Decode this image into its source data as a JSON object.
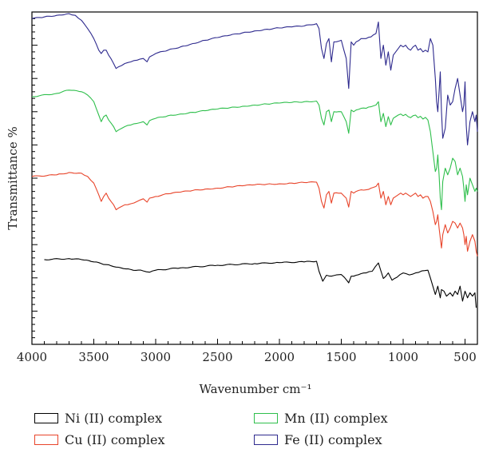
{
  "chart_data": {
    "type": "line",
    "xlabel": "Wavenumber cm⁻¹",
    "ylabel": "Transmittance %",
    "xlim": [
      4000,
      400
    ],
    "x_reversed": true,
    "ylim": [
      0,
      100
    ],
    "y_tick_labels_shown": false,
    "x_ticks": [
      4000,
      3500,
      3000,
      2500,
      2000,
      1500,
      1000,
      500
    ],
    "x_tick_labels": [
      "4000",
      "3500",
      "3000",
      "2500",
      "2000",
      "1500",
      "1000",
      "500"
    ],
    "legend_position": "bottom",
    "series": [
      {
        "name": "Ni (II) complex",
        "color": "#000000",
        "x": [
          3900,
          3700,
          3600,
          3500,
          3400,
          3300,
          3200,
          3100,
          3050,
          3000,
          2800,
          2500,
          2200,
          2000,
          1800,
          1700,
          1680,
          1650,
          1620,
          1580,
          1500,
          1450,
          1440,
          1420,
          1380,
          1300,
          1250,
          1200,
          1160,
          1120,
          1090,
          1050,
          1000,
          950,
          900,
          850,
          800,
          780,
          760,
          740,
          720,
          700,
          690,
          670,
          650,
          620,
          600,
          580,
          560,
          540,
          520,
          500,
          480,
          460,
          440,
          420,
          410
        ],
        "y": [
          25.5,
          25.8,
          25.5,
          24.8,
          24.0,
          23.2,
          22.5,
          22.1,
          21.7,
          22.3,
          23.0,
          23.8,
          24.3,
          24.6,
          24.8,
          25.0,
          22.0,
          19.0,
          20.8,
          20.5,
          21.0,
          19.0,
          18.5,
          20.5,
          20.8,
          21.5,
          22.0,
          24.5,
          19.8,
          21.5,
          19.3,
          20.2,
          21.5,
          20.9,
          21.5,
          22.1,
          22.3,
          20.0,
          17.5,
          15.0,
          17.5,
          14.0,
          16.5,
          16.0,
          14.5,
          15.5,
          14.5,
          16.0,
          15.0,
          17.5,
          13.0,
          16.0,
          14.0,
          15.5,
          14.5,
          15.5,
          11.0
        ]
      },
      {
        "name": "Cu (II) complex",
        "color": "#e8442a",
        "x": [
          4000,
          3800,
          3700,
          3600,
          3550,
          3500,
          3460,
          3440,
          3420,
          3400,
          3380,
          3340,
          3320,
          3300,
          3250,
          3200,
          3150,
          3100,
          3070,
          3050,
          3000,
          2900,
          2800,
          2700,
          2600,
          2500,
          2400,
          2300,
          2200,
          2100,
          2000,
          1900,
          1800,
          1700,
          1680,
          1660,
          1640,
          1620,
          1600,
          1580,
          1560,
          1500,
          1460,
          1440,
          1420,
          1400,
          1380,
          1340,
          1300,
          1260,
          1220,
          1200,
          1180,
          1160,
          1140,
          1120,
          1100,
          1080,
          1060,
          1040,
          1020,
          1000,
          980,
          960,
          940,
          920,
          900,
          880,
          860,
          840,
          820,
          800,
          780,
          760,
          740,
          730,
          720,
          710,
          700,
          690,
          680,
          660,
          640,
          620,
          600,
          580,
          560,
          540,
          520,
          510,
          500,
          490,
          480,
          460,
          440,
          420,
          410,
          400
        ],
        "y": [
          50.5,
          51.0,
          51.7,
          51.5,
          50.5,
          48.5,
          45.0,
          43.0,
          44.5,
          45.5,
          44.0,
          42.0,
          40.5,
          41.0,
          42.0,
          42.3,
          43.0,
          43.8,
          42.8,
          44.0,
          44.5,
          45.3,
          45.8,
          46.3,
          46.7,
          47.0,
          47.4,
          47.7,
          48.0,
          48.2,
          48.3,
          48.5,
          48.7,
          48.8,
          47.0,
          43.0,
          41.0,
          45.0,
          46.0,
          42.5,
          45.5,
          45.5,
          44.0,
          41.3,
          46.0,
          45.5,
          46.0,
          46.5,
          46.5,
          47.0,
          47.5,
          48.5,
          44.0,
          46.0,
          42.0,
          44.5,
          42.0,
          44.0,
          44.5,
          45.0,
          45.5,
          45.0,
          45.5,
          45.0,
          44.5,
          45.0,
          45.5,
          44.5,
          45.0,
          44.0,
          44.5,
          44.5,
          43.0,
          40.0,
          36.0,
          37.0,
          39.0,
          35.0,
          32.0,
          29.0,
          33.0,
          36.0,
          33.5,
          35.0,
          37.0,
          36.5,
          35.0,
          36.5,
          35.0,
          33.0,
          30.0,
          32.5,
          28.0,
          31.0,
          33.0,
          31.0,
          28.0,
          26.5
        ]
      },
      {
        "name": "Mn (II) complex",
        "color": "#2fbf4c",
        "x": [
          4000,
          3800,
          3700,
          3600,
          3550,
          3500,
          3460,
          3440,
          3420,
          3400,
          3380,
          3340,
          3320,
          3300,
          3250,
          3200,
          3150,
          3100,
          3070,
          3050,
          3000,
          2900,
          2800,
          2700,
          2600,
          2500,
          2400,
          2300,
          2200,
          2100,
          2000,
          1900,
          1800,
          1700,
          1680,
          1660,
          1640,
          1620,
          1600,
          1580,
          1560,
          1500,
          1460,
          1440,
          1420,
          1400,
          1380,
          1340,
          1300,
          1260,
          1220,
          1200,
          1180,
          1160,
          1140,
          1120,
          1100,
          1080,
          1060,
          1040,
          1020,
          1000,
          980,
          960,
          940,
          920,
          900,
          880,
          860,
          840,
          820,
          800,
          780,
          760,
          740,
          730,
          720,
          710,
          700,
          690,
          680,
          660,
          640,
          620,
          600,
          580,
          560,
          540,
          520,
          510,
          500,
          490,
          480,
          460,
          440,
          420,
          410,
          400
        ],
        "y": [
          74.5,
          75.5,
          76.5,
          76.0,
          75.0,
          73.0,
          69.0,
          67.0,
          68.5,
          69.0,
          67.5,
          65.5,
          64.0,
          64.5,
          65.5,
          66.0,
          66.5,
          67.0,
          66.0,
          67.3,
          68.0,
          68.8,
          69.3,
          69.8,
          70.3,
          70.8,
          71.2,
          71.6,
          72.0,
          72.3,
          72.6,
          72.8,
          73.0,
          73.2,
          72.0,
          68.0,
          66.0,
          70.0,
          70.5,
          67.0,
          70.0,
          70.0,
          67.0,
          63.5,
          70.5,
          70.0,
          70.5,
          71.0,
          71.0,
          71.5,
          72.0,
          73.0,
          67.0,
          69.5,
          65.5,
          68.5,
          66.0,
          68.0,
          68.5,
          69.0,
          69.3,
          68.8,
          69.2,
          68.5,
          68.2,
          68.8,
          69.0,
          68.2,
          68.6,
          67.8,
          68.3,
          67.5,
          64.0,
          58.0,
          52.0,
          53.0,
          57.0,
          51.0,
          44.0,
          40.5,
          49.0,
          53.0,
          51.0,
          53.0,
          56.0,
          55.0,
          51.0,
          53.0,
          50.5,
          47.0,
          43.0,
          48.0,
          45.0,
          50.0,
          48.0,
          46.0,
          47.0,
          46.0
        ]
      },
      {
        "name": "Fe (II) complex",
        "color": "#2e2a8e",
        "x": [
          4000,
          3900,
          3800,
          3700,
          3650,
          3600,
          3550,
          3500,
          3460,
          3440,
          3420,
          3400,
          3380,
          3340,
          3320,
          3300,
          3250,
          3200,
          3150,
          3100,
          3070,
          3050,
          3000,
          2900,
          2800,
          2700,
          2600,
          2500,
          2400,
          2300,
          2200,
          2100,
          2000,
          1900,
          1800,
          1700,
          1680,
          1660,
          1640,
          1620,
          1600,
          1580,
          1560,
          1500,
          1460,
          1440,
          1420,
          1400,
          1380,
          1340,
          1300,
          1260,
          1220,
          1200,
          1180,
          1160,
          1140,
          1120,
          1100,
          1080,
          1060,
          1040,
          1020,
          1000,
          980,
          960,
          940,
          920,
          900,
          880,
          860,
          840,
          820,
          800,
          780,
          760,
          740,
          730,
          720,
          710,
          700,
          690,
          680,
          660,
          640,
          620,
          600,
          580,
          560,
          540,
          520,
          510,
          500,
          490,
          480,
          460,
          440,
          420,
          410,
          400
        ],
        "y": [
          98.0,
          98.5,
          99.0,
          99.5,
          99.0,
          97.5,
          95.0,
          92.0,
          88.5,
          87.5,
          88.5,
          88.5,
          87.0,
          84.5,
          83.0,
          83.5,
          84.5,
          85.0,
          85.5,
          86.0,
          85.0,
          86.5,
          87.5,
          88.5,
          89.5,
          90.5,
          91.5,
          92.3,
          93.0,
          93.7,
          94.3,
          94.8,
          95.2,
          95.5,
          95.8,
          96.5,
          95.0,
          89.0,
          86.0,
          90.5,
          92.0,
          85.0,
          91.0,
          91.5,
          86.0,
          77.0,
          91.0,
          90.0,
          91.0,
          92.0,
          92.0,
          92.5,
          93.5,
          97.0,
          86.0,
          90.0,
          84.0,
          88.0,
          82.5,
          87.0,
          88.0,
          89.0,
          90.0,
          89.5,
          90.0,
          89.0,
          88.5,
          89.5,
          90.0,
          88.5,
          89.0,
          88.0,
          88.5,
          88.0,
          92.0,
          90.0,
          80.0,
          73.0,
          70.0,
          76.0,
          82.0,
          70.0,
          62.0,
          65.0,
          75.0,
          72.0,
          73.0,
          77.0,
          80.0,
          75.0,
          70.0,
          72.0,
          79.0,
          66.0,
          60.0,
          67.0,
          70.0,
          67.0,
          69.0,
          64.0
        ]
      }
    ]
  },
  "legend": {
    "items": [
      {
        "label": "Ni (II) complex",
        "color": "#000000"
      },
      {
        "label": "Mn (II) complex",
        "color": "#2fbf4c"
      },
      {
        "label": "Cu (II) complex",
        "color": "#e8442a"
      },
      {
        "label": "Fe (II) complex",
        "color": "#2e2a8e"
      }
    ]
  }
}
